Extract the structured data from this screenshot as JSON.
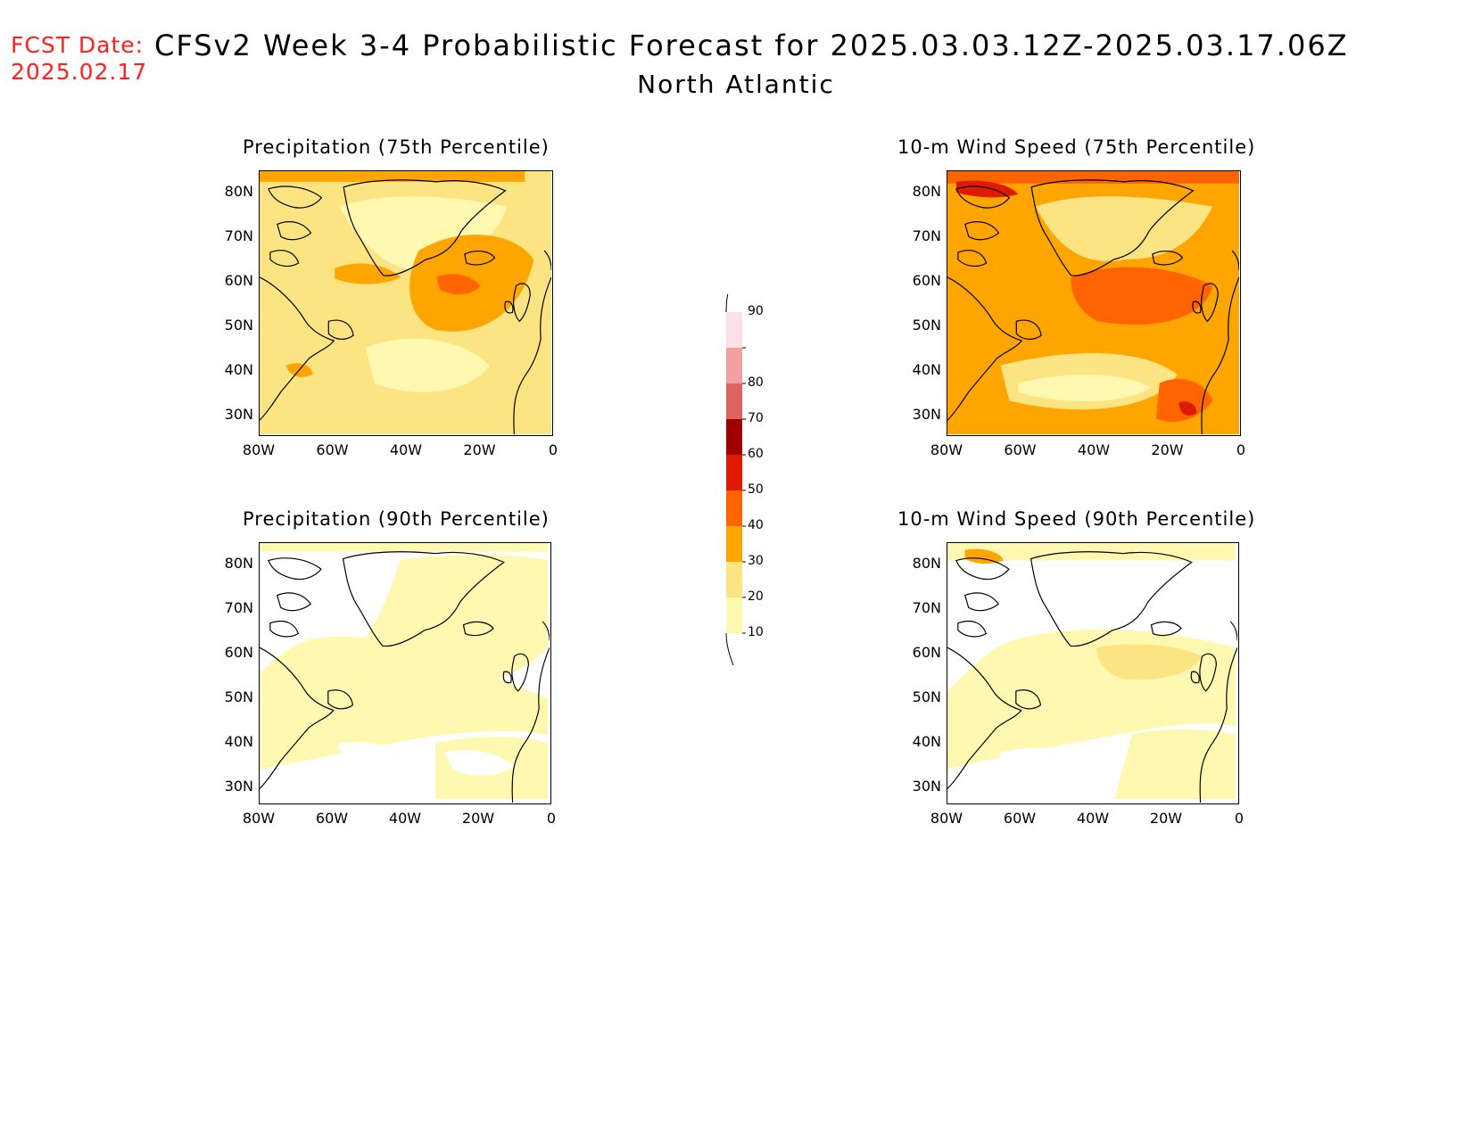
{
  "header": {
    "fcst_label": "FCST Date:",
    "fcst_date": "2025.02.17",
    "title": "CFSv2 Week 3-4 Probabilistic Forecast for 2025.03.03.12Z-2025.03.17.06Z",
    "region": "North Atlantic"
  },
  "axes": {
    "lat_ticks": [
      "80N",
      "70N",
      "60N",
      "50N",
      "40N",
      "30N"
    ],
    "lon_ticks": [
      "80W",
      "60W",
      "40W",
      "20W",
      "0"
    ]
  },
  "panels": [
    {
      "id": "precip-75",
      "title": "Precipitation (75th Percentile)",
      "intensity": "high-moderate"
    },
    {
      "id": "wind-75",
      "title": "10-m Wind Speed (75th Percentile)",
      "intensity": "high"
    },
    {
      "id": "precip-90",
      "title": "Precipitation (90th Percentile)",
      "intensity": "low"
    },
    {
      "id": "wind-90",
      "title": "10-m Wind Speed (90th Percentile)",
      "intensity": "low-moderate"
    }
  ],
  "colorbar": {
    "levels": [
      "10",
      "20",
      "30",
      "40",
      "50",
      "60",
      "70",
      "80",
      "90"
    ],
    "colors": [
      "#fff8b0",
      "#fde483",
      "#ffa500",
      "#ff6400",
      "#e01a00",
      "#a00000",
      "#de6460",
      "#f0a0a0",
      "#fce0e8"
    ]
  }
}
